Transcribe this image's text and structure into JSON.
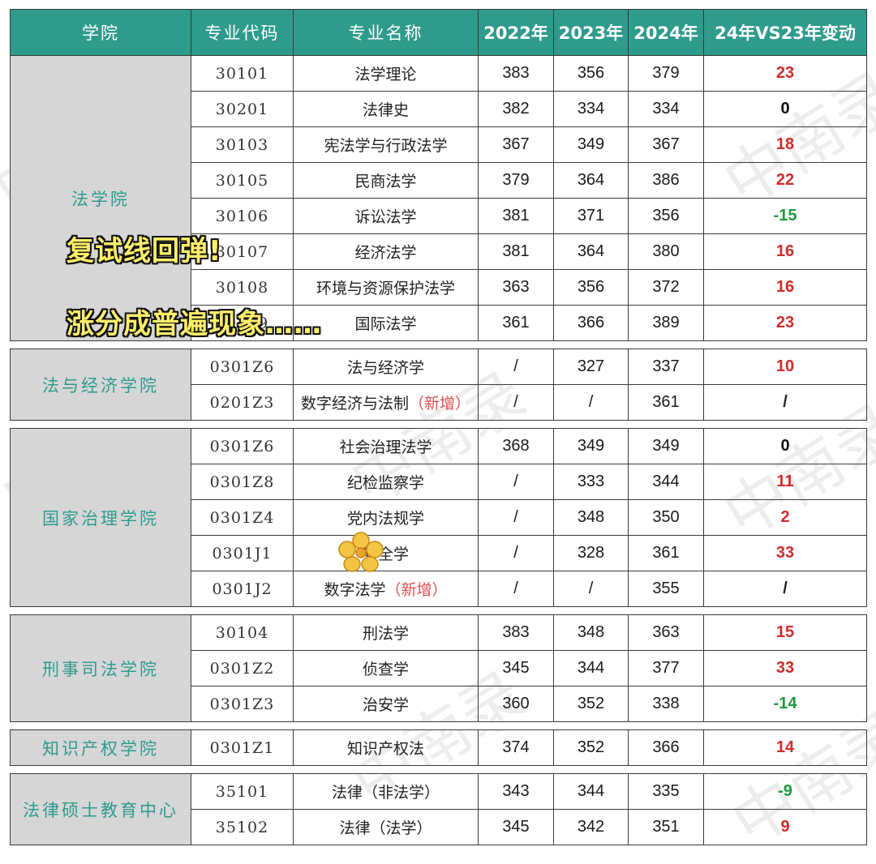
{
  "header": {
    "college": "学院",
    "code": "专业代码",
    "major": "专业名称",
    "y2022": "2022年",
    "y2023": "2023年",
    "y2024": "2024年",
    "change": "24年VS23年变动"
  },
  "groups": [
    {
      "college": "法学院",
      "rows": [
        {
          "code": "30101",
          "major": "法学理论",
          "major_tag": "",
          "y2022": "383",
          "y2023": "356",
          "y2024": "379",
          "change": "23",
          "dir": "up"
        },
        {
          "code": "30201",
          "major": "法律史",
          "major_tag": "",
          "y2022": "382",
          "y2023": "334",
          "y2024": "334",
          "change": "0",
          "dir": "zero"
        },
        {
          "code": "30103",
          "major": "宪法学与行政法学",
          "major_tag": "",
          "y2022": "367",
          "y2023": "349",
          "y2024": "367",
          "change": "18",
          "dir": "up"
        },
        {
          "code": "30105",
          "major": "民商法学",
          "major_tag": "",
          "y2022": "379",
          "y2023": "364",
          "y2024": "386",
          "change": "22",
          "dir": "up"
        },
        {
          "code": "30106",
          "major": "诉讼法学",
          "major_tag": "",
          "y2022": "381",
          "y2023": "371",
          "y2024": "356",
          "change": "-15",
          "dir": "down"
        },
        {
          "code": "30107",
          "major": "经济法学",
          "major_tag": "",
          "y2022": "381",
          "y2023": "364",
          "y2024": "380",
          "change": "16",
          "dir": "up"
        },
        {
          "code": "30108",
          "major": "环境与资源保护法学",
          "major_tag": "",
          "y2022": "363",
          "y2023": "356",
          "y2024": "372",
          "change": "16",
          "dir": "up"
        },
        {
          "code": "30109",
          "major": "国际法学",
          "major_tag": "",
          "y2022": "361",
          "y2023": "366",
          "y2024": "389",
          "change": "23",
          "dir": "up"
        }
      ]
    },
    {
      "college": "法与经济学院",
      "rows": [
        {
          "code": "0301Z6",
          "major": "法与经济学",
          "major_tag": "",
          "y2022": "/",
          "y2023": "327",
          "y2024": "337",
          "change": "10",
          "dir": "up"
        },
        {
          "code": "0201Z3",
          "major": "数字经济与法制",
          "major_tag": "（新增）",
          "y2022": "/",
          "y2023": "/",
          "y2024": "361",
          "change": "/",
          "dir": "na"
        }
      ]
    },
    {
      "college": "国家治理学院",
      "rows": [
        {
          "code": "0301Z6",
          "major": "社会治理法学",
          "major_tag": "",
          "y2022": "368",
          "y2023": "349",
          "y2024": "349",
          "change": "0",
          "dir": "zero"
        },
        {
          "code": "0301Z8",
          "major": "纪检监察学",
          "major_tag": "",
          "y2022": "/",
          "y2023": "333",
          "y2024": "344",
          "change": "11",
          "dir": "up"
        },
        {
          "code": "0301Z4",
          "major": "党内法规学",
          "major_tag": "",
          "y2022": "/",
          "y2023": "348",
          "y2024": "350",
          "change": "2",
          "dir": "up"
        },
        {
          "code": "0301J1",
          "major": "安全学",
          "major_tag": "",
          "y2022": "/",
          "y2023": "328",
          "y2024": "361",
          "change": "33",
          "dir": "up"
        },
        {
          "code": "0301J2",
          "major": "数字法学",
          "major_tag": "（新增）",
          "y2022": "/",
          "y2023": "/",
          "y2024": "355",
          "change": "/",
          "dir": "na"
        }
      ]
    },
    {
      "college": "刑事司法学院",
      "rows": [
        {
          "code": "30104",
          "major": "刑法学",
          "major_tag": "",
          "y2022": "383",
          "y2023": "348",
          "y2024": "363",
          "change": "15",
          "dir": "up"
        },
        {
          "code": "0301Z2",
          "major": "侦查学",
          "major_tag": "",
          "y2022": "345",
          "y2023": "344",
          "y2024": "377",
          "change": "33",
          "dir": "up"
        },
        {
          "code": "0301Z3",
          "major": "治安学",
          "major_tag": "",
          "y2022": "360",
          "y2023": "352",
          "y2024": "338",
          "change": "-14",
          "dir": "down"
        }
      ]
    },
    {
      "college": "知识产权学院",
      "rows": [
        {
          "code": "0301Z1",
          "major": "知识产权法",
          "major_tag": "",
          "y2022": "374",
          "y2023": "352",
          "y2024": "366",
          "change": "14",
          "dir": "up"
        }
      ]
    },
    {
      "college": "法律硕士教育中心",
      "rows": [
        {
          "code": "35101",
          "major": "法律（非法学）",
          "major_tag": "",
          "y2022": "343",
          "y2023": "344",
          "y2024": "335",
          "change": "-9",
          "dir": "down"
        },
        {
          "code": "35102",
          "major": "法律（法学）",
          "major_tag": "",
          "y2022": "345",
          "y2023": "342",
          "y2024": "351",
          "change": "9",
          "dir": "up"
        }
      ]
    }
  ],
  "overlay": {
    "line1": "复试线回弹!",
    "line2": "涨分成普遍现象……"
  },
  "watermark": "中南录",
  "colors": {
    "header_bg": "#2f9b8c",
    "college_text": "#2f9b8c",
    "college_bg": "#d6d6d6",
    "up": "#d42a2a",
    "down": "#1e9a3c"
  }
}
